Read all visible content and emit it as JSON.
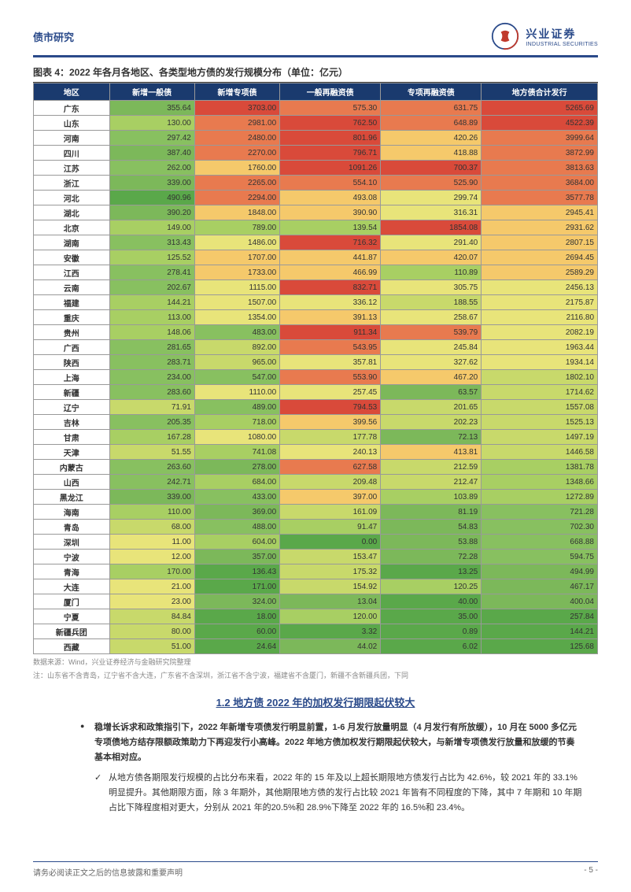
{
  "header": {
    "category": "债市研究",
    "brand_cn": "兴业证券",
    "brand_en": "INDUSTRIAL SECURITIES"
  },
  "table": {
    "title": "图表 4：2022 年各月各地区、各类型地方债的发行规模分布（单位：亿元）",
    "columns": [
      "地区",
      "新增一般债",
      "新增专项债",
      "一般再融资债",
      "专项再融资债",
      "地方债合计发行"
    ],
    "heat_palette": {
      "low": "#5aa84a",
      "mid_low": "#a8cf63",
      "mid": "#e8e47a",
      "mid_high": "#f5c96b",
      "high": "#e87a4f",
      "very_high": "#d94a3a"
    },
    "rows": [
      {
        "r": "广东",
        "v": [
          355.64,
          3703.0,
          575.3,
          631.75,
          5265.69
        ],
        "c": [
          "#7cb85a",
          "#d94a3a",
          "#e87a4f",
          "#e87a4f",
          "#d94a3a"
        ]
      },
      {
        "r": "山东",
        "v": [
          130.0,
          2981.0,
          762.5,
          648.89,
          4522.39
        ],
        "c": [
          "#a8cf63",
          "#e87a4f",
          "#d94a3a",
          "#e87a4f",
          "#d94a3a"
        ]
      },
      {
        "r": "河南",
        "v": [
          297.42,
          2480.0,
          801.96,
          420.26,
          3999.64
        ],
        "c": [
          "#88c060",
          "#e87a4f",
          "#d94a3a",
          "#f5c96b",
          "#e87a4f"
        ]
      },
      {
        "r": "四川",
        "v": [
          387.4,
          2270.0,
          796.71,
          418.88,
          3872.99
        ],
        "c": [
          "#7cb85a",
          "#e87a4f",
          "#d94a3a",
          "#f5c96b",
          "#e87a4f"
        ]
      },
      {
        "r": "江苏",
        "v": [
          262.0,
          1760.0,
          1091.26,
          700.37,
          3813.63
        ],
        "c": [
          "#88c060",
          "#f5c96b",
          "#d94a3a",
          "#d94a3a",
          "#e87a4f"
        ]
      },
      {
        "r": "浙江",
        "v": [
          339.0,
          2265.0,
          554.1,
          525.9,
          3684.0
        ],
        "c": [
          "#7cb85a",
          "#e87a4f",
          "#e87a4f",
          "#e87a4f",
          "#e87a4f"
        ]
      },
      {
        "r": "河北",
        "v": [
          490.96,
          2294.0,
          493.08,
          299.74,
          3577.78
        ],
        "c": [
          "#5aa84a",
          "#e87a4f",
          "#f5c96b",
          "#e8e47a",
          "#e87a4f"
        ]
      },
      {
        "r": "湖北",
        "v": [
          390.2,
          1848.0,
          390.9,
          316.31,
          2945.41
        ],
        "c": [
          "#7cb85a",
          "#f5c96b",
          "#f5c96b",
          "#e8e47a",
          "#f5c96b"
        ]
      },
      {
        "r": "北京",
        "v": [
          149.0,
          789.0,
          139.54,
          1854.08,
          2931.62
        ],
        "c": [
          "#a8cf63",
          "#a8cf63",
          "#a8cf63",
          "#d94a3a",
          "#f5c96b"
        ]
      },
      {
        "r": "湖南",
        "v": [
          313.43,
          1486.0,
          716.32,
          291.4,
          2807.15
        ],
        "c": [
          "#88c060",
          "#e8e47a",
          "#d94a3a",
          "#e8e47a",
          "#f5c96b"
        ]
      },
      {
        "r": "安徽",
        "v": [
          125.52,
          1707.0,
          441.87,
          420.07,
          2694.45
        ],
        "c": [
          "#a8cf63",
          "#f5c96b",
          "#f5c96b",
          "#f5c96b",
          "#f5c96b"
        ]
      },
      {
        "r": "江西",
        "v": [
          278.41,
          1733.0,
          466.99,
          110.89,
          2589.29
        ],
        "c": [
          "#88c060",
          "#f5c96b",
          "#f5c96b",
          "#a8cf63",
          "#f5c96b"
        ]
      },
      {
        "r": "云南",
        "v": [
          202.67,
          1115.0,
          832.71,
          305.75,
          2456.13
        ],
        "c": [
          "#88c060",
          "#e8e47a",
          "#d94a3a",
          "#e8e47a",
          "#e8e47a"
        ]
      },
      {
        "r": "福建",
        "v": [
          144.21,
          1507.0,
          336.12,
          188.55,
          2175.87
        ],
        "c": [
          "#a8cf63",
          "#e8e47a",
          "#e8e47a",
          "#c8d96b",
          "#e8e47a"
        ]
      },
      {
        "r": "重庆",
        "v": [
          113.0,
          1354.0,
          391.13,
          258.67,
          2116.8
        ],
        "c": [
          "#a8cf63",
          "#e8e47a",
          "#f5c96b",
          "#e8e47a",
          "#e8e47a"
        ]
      },
      {
        "r": "贵州",
        "v": [
          148.06,
          483.0,
          911.34,
          539.79,
          2082.19
        ],
        "c": [
          "#a8cf63",
          "#88c060",
          "#d94a3a",
          "#e87a4f",
          "#e8e47a"
        ]
      },
      {
        "r": "广西",
        "v": [
          281.65,
          892.0,
          543.95,
          245.84,
          1963.44
        ],
        "c": [
          "#88c060",
          "#c8d96b",
          "#e87a4f",
          "#e8e47a",
          "#e8e47a"
        ]
      },
      {
        "r": "陕西",
        "v": [
          283.71,
          965.0,
          357.81,
          327.62,
          1934.14
        ],
        "c": [
          "#88c060",
          "#c8d96b",
          "#e8e47a",
          "#e8e47a",
          "#e8e47a"
        ]
      },
      {
        "r": "上海",
        "v": [
          234.0,
          547.0,
          553.9,
          467.2,
          1802.1
        ],
        "c": [
          "#88c060",
          "#88c060",
          "#e87a4f",
          "#f5c96b",
          "#c8d96b"
        ]
      },
      {
        "r": "新疆",
        "v": [
          283.6,
          1110.0,
          257.45,
          63.57,
          1714.62
        ],
        "c": [
          "#88c060",
          "#e8e47a",
          "#e8e47a",
          "#7cb85a",
          "#c8d96b"
        ]
      },
      {
        "r": "辽宁",
        "v": [
          71.91,
          489.0,
          794.53,
          201.65,
          1557.08
        ],
        "c": [
          "#c8d96b",
          "#88c060",
          "#d94a3a",
          "#c8d96b",
          "#c8d96b"
        ]
      },
      {
        "r": "吉林",
        "v": [
          205.35,
          718.0,
          399.56,
          202.23,
          1525.13
        ],
        "c": [
          "#88c060",
          "#a8cf63",
          "#f5c96b",
          "#c8d96b",
          "#c8d96b"
        ]
      },
      {
        "r": "甘肃",
        "v": [
          167.28,
          1080.0,
          177.78,
          72.13,
          1497.19
        ],
        "c": [
          "#a8cf63",
          "#e8e47a",
          "#c8d96b",
          "#7cb85a",
          "#c8d96b"
        ]
      },
      {
        "r": "天津",
        "v": [
          51.55,
          741.08,
          240.13,
          413.81,
          1446.58
        ],
        "c": [
          "#c8d96b",
          "#a8cf63",
          "#e8e47a",
          "#f5c96b",
          "#c8d96b"
        ]
      },
      {
        "r": "内蒙古",
        "v": [
          263.6,
          278.0,
          627.58,
          212.59,
          1381.78
        ],
        "c": [
          "#88c060",
          "#7cb85a",
          "#e87a4f",
          "#c8d96b",
          "#a8cf63"
        ]
      },
      {
        "r": "山西",
        "v": [
          242.71,
          684.0,
          209.48,
          212.47,
          1348.66
        ],
        "c": [
          "#88c060",
          "#a8cf63",
          "#c8d96b",
          "#c8d96b",
          "#a8cf63"
        ]
      },
      {
        "r": "黑龙江",
        "v": [
          339.0,
          433.0,
          397.0,
          103.89,
          1272.89
        ],
        "c": [
          "#7cb85a",
          "#88c060",
          "#f5c96b",
          "#a8cf63",
          "#a8cf63"
        ]
      },
      {
        "r": "海南",
        "v": [
          110.0,
          369.0,
          161.09,
          81.19,
          721.28
        ],
        "c": [
          "#a8cf63",
          "#7cb85a",
          "#c8d96b",
          "#7cb85a",
          "#88c060"
        ]
      },
      {
        "r": "青岛",
        "v": [
          68.0,
          488.0,
          91.47,
          54.83,
          702.3
        ],
        "c": [
          "#c8d96b",
          "#88c060",
          "#a8cf63",
          "#7cb85a",
          "#88c060"
        ]
      },
      {
        "r": "深圳",
        "v": [
          11.0,
          604.0,
          0.0,
          53.88,
          668.88
        ],
        "c": [
          "#e8e47a",
          "#a8cf63",
          "#5aa84a",
          "#7cb85a",
          "#88c060"
        ]
      },
      {
        "r": "宁波",
        "v": [
          12.0,
          357.0,
          153.47,
          72.28,
          594.75
        ],
        "c": [
          "#e8e47a",
          "#7cb85a",
          "#c8d96b",
          "#7cb85a",
          "#88c060"
        ]
      },
      {
        "r": "青海",
        "v": [
          170.0,
          136.43,
          175.32,
          13.25,
          494.99
        ],
        "c": [
          "#a8cf63",
          "#5aa84a",
          "#c8d96b",
          "#5aa84a",
          "#7cb85a"
        ]
      },
      {
        "r": "大连",
        "v": [
          21.0,
          171.0,
          154.92,
          120.25,
          467.17
        ],
        "c": [
          "#e8e47a",
          "#5aa84a",
          "#c8d96b",
          "#a8cf63",
          "#7cb85a"
        ]
      },
      {
        "r": "厦门",
        "v": [
          23.0,
          324.0,
          13.04,
          40.0,
          400.04
        ],
        "c": [
          "#e8e47a",
          "#7cb85a",
          "#7cb85a",
          "#5aa84a",
          "#7cb85a"
        ]
      },
      {
        "r": "宁夏",
        "v": [
          84.84,
          18.0,
          120.0,
          35.0,
          257.84
        ],
        "c": [
          "#c8d96b",
          "#5aa84a",
          "#a8cf63",
          "#5aa84a",
          "#5aa84a"
        ]
      },
      {
        "r": "新疆兵团",
        "v": [
          80.0,
          60.0,
          3.32,
          0.89,
          144.21
        ],
        "c": [
          "#c8d96b",
          "#5aa84a",
          "#5aa84a",
          "#5aa84a",
          "#5aa84a"
        ]
      },
      {
        "r": "西藏",
        "v": [
          51.0,
          24.64,
          44.02,
          6.02,
          125.68
        ],
        "c": [
          "#c8d96b",
          "#5aa84a",
          "#7cb85a",
          "#5aa84a",
          "#5aa84a"
        ]
      }
    ],
    "source": "数据来源：Wind，兴业证券经济与金融研究院整理",
    "note": "注：山东省不含青岛，辽宁省不含大连，广东省不含深圳，浙江省不含宁波，福建省不含厦门，新疆不含新疆兵团，下同"
  },
  "section": {
    "title": "1.2 地方债 2022 年的加权发行期限起伏较大",
    "bullet": "稳增长诉求和政策指引下，2022 年新增专项债发行明显前置，1-6 月发行放量明显（4 月发行有所放缓），10 月在 5000 多亿元专项债地方结存限额政策助力下再迎发行小高峰。2022 年地方债加权发行期限起伏较大，与新增专项债发行放量和放缓的节奏基本相对应。",
    "check": "从地方债各期限发行规模的占比分布来看，2022 年的 15 年及以上超长期限地方债发行占比为 42.6%，较 2021 年的 33.1%明显提升。其他期限方面，除 3 年期外，其他期限地方债的发行占比较 2021 年皆有不同程度的下降，其中 7 年期和 10 年期占比下降程度相对更大，分别从 2021 年的20.5%和 28.9%下降至 2022 年的 16.5%和 23.4%。"
  },
  "footer": {
    "disclaimer": "请务必阅读正文之后的信息披露和重要声明",
    "page": "- 5 -"
  }
}
